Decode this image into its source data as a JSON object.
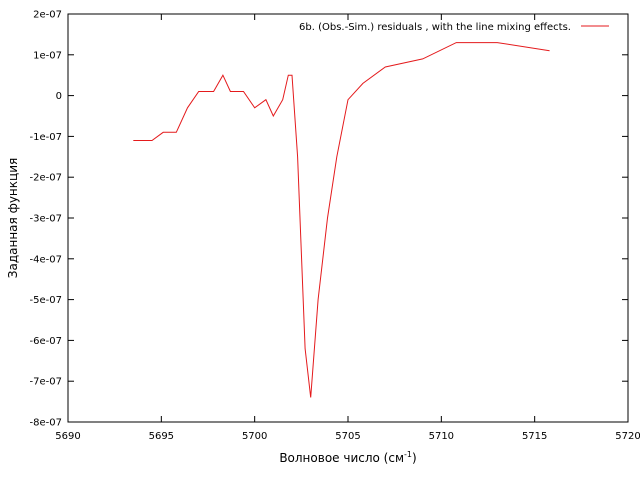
{
  "chart_data": {
    "type": "line",
    "xlabel": "Волновое число (см",
    "xlabel_sup": "-1",
    "xlabel_close": ")",
    "ylabel": "Заданная функция",
    "xlim": [
      5690,
      5720
    ],
    "ylim": [
      -8e-07,
      2e-07
    ],
    "xticks": [
      5690,
      5695,
      5700,
      5705,
      5710,
      5715,
      5720
    ],
    "xtick_labels": [
      "5690",
      "5695",
      "5700",
      "5705",
      "5710",
      "5715",
      "5720"
    ],
    "yticks": [
      2e-07,
      1e-07,
      0,
      -1e-07,
      -2e-07,
      -3e-07,
      -4e-07,
      -5e-07,
      -6e-07,
      -7e-07,
      -8e-07
    ],
    "ytick_labels": [
      "2e-07",
      "1e-07",
      "0",
      "-1e-07",
      "-2e-07",
      "-3e-07",
      "-4e-07",
      "-5e-07",
      "-6e-07",
      "-7e-07",
      "-8e-07"
    ],
    "grid": false,
    "legend_position": "top-right",
    "series": [
      {
        "name": "6b. (Obs.-Sim.) residuals , with  the line mixing effects.",
        "color": "#e41a1c",
        "x": [
          5693.5,
          5694.5,
          5695.1,
          5695.8,
          5696.4,
          5697.0,
          5697.8,
          5698.3,
          5698.7,
          5699.4,
          5700.0,
          5700.6,
          5701.0,
          5701.5,
          5701.8,
          5702.0,
          5702.3,
          5702.7,
          5703.0,
          5703.4,
          5703.9,
          5704.4,
          5705.0,
          5705.8,
          5707.0,
          5709.0,
          5710.8,
          5713.0,
          5715.8
        ],
        "y": [
          -1.1e-07,
          -1.1e-07,
          -9e-08,
          -9e-08,
          -3e-08,
          1e-08,
          1e-08,
          5e-08,
          1e-08,
          1e-08,
          -3e-08,
          -1e-08,
          -5e-08,
          -1e-08,
          5e-08,
          5e-08,
          -1.5e-07,
          -6.2e-07,
          -7.4e-07,
          -5e-07,
          -3e-07,
          -1.5e-07,
          -1e-08,
          3e-08,
          7e-08,
          9e-08,
          1.3e-07,
          1.3e-07,
          1.1e-07
        ]
      }
    ]
  }
}
